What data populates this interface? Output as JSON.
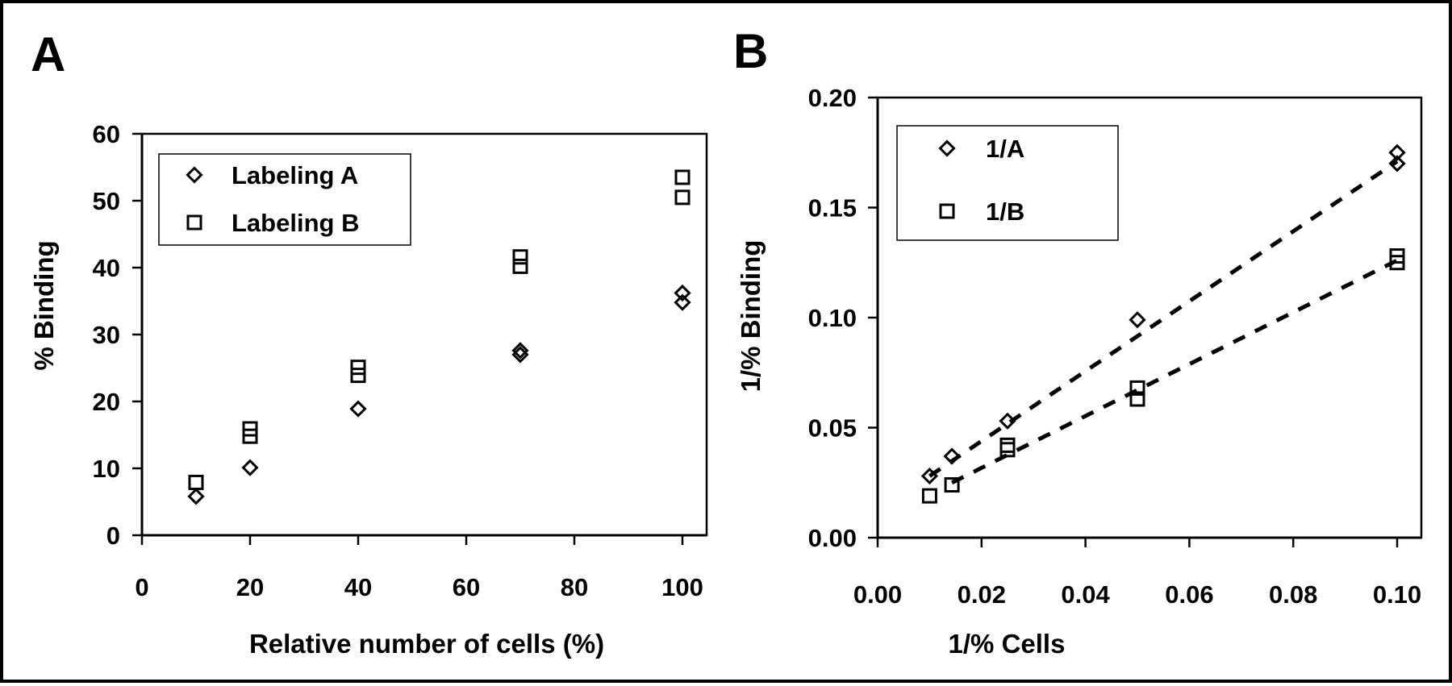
{
  "panels": [
    {
      "letter": "A",
      "chart_data": {
        "type": "scatter",
        "title": "",
        "xlabel": "Relative number of cells (%)",
        "ylabel": "% Binding",
        "xlim": [
          0,
          100
        ],
        "ylim": [
          0,
          60
        ],
        "xticks": [
          0,
          20,
          40,
          60,
          80,
          100
        ],
        "yticks": [
          0,
          10,
          20,
          30,
          40,
          50,
          60
        ],
        "xtick_labels": [
          "0",
          "20",
          "40",
          "60",
          "80",
          "100"
        ],
        "ytick_labels": [
          "0",
          "10",
          "20",
          "30",
          "40",
          "50",
          "60"
        ],
        "grid": false,
        "legend_position": "top-left",
        "series": [
          {
            "name": "Labeling A",
            "marker": "diamond",
            "points": [
              [
                10,
                5.8
              ],
              [
                20,
                10.1
              ],
              [
                40,
                18.9
              ],
              [
                70,
                27.0
              ],
              [
                70,
                27.6
              ],
              [
                100,
                34.8
              ],
              [
                100,
                36.2
              ]
            ]
          },
          {
            "name": "Labeling B",
            "marker": "square",
            "points": [
              [
                10,
                7.9
              ],
              [
                20,
                14.8
              ],
              [
                20,
                15.9
              ],
              [
                40,
                23.9
              ],
              [
                40,
                25.1
              ],
              [
                70,
                40.2
              ],
              [
                70,
                41.6
              ],
              [
                100,
                50.5
              ],
              [
                100,
                53.5
              ]
            ]
          }
        ]
      }
    },
    {
      "letter": "B",
      "chart_data": {
        "type": "scatter",
        "title": "",
        "xlabel": "1/% Cells",
        "ylabel": "1/% Binding",
        "xlim": [
          0,
          0.1
        ],
        "ylim": [
          0,
          0.2
        ],
        "xticks": [
          0,
          0.02,
          0.04,
          0.06,
          0.08,
          0.1
        ],
        "yticks": [
          0,
          0.05,
          0.1,
          0.15,
          0.2
        ],
        "xtick_labels": [
          "0.00",
          "0.02",
          "0.04",
          "0.06",
          "0.08",
          "0.10"
        ],
        "ytick_labels": [
          "0.00",
          "0.05",
          "0.10",
          "0.15",
          "0.20"
        ],
        "grid": false,
        "legend_position": "top-left",
        "series": [
          {
            "name": "1/A",
            "marker": "diamond",
            "points": [
              [
                0.01,
                0.028
              ],
              [
                0.0143,
                0.037
              ],
              [
                0.025,
                0.053
              ],
              [
                0.05,
                0.099
              ],
              [
                0.1,
                0.17
              ],
              [
                0.1,
                0.175
              ]
            ],
            "fit": {
              "style": "dashed",
              "x": [
                0.01,
                0.1
              ],
              "y": [
                0.028,
                0.171
              ]
            }
          },
          {
            "name": "1/B",
            "marker": "square",
            "points": [
              [
                0.01,
                0.019
              ],
              [
                0.0143,
                0.024
              ],
              [
                0.025,
                0.04
              ],
              [
                0.025,
                0.042
              ],
              [
                0.05,
                0.063
              ],
              [
                0.05,
                0.068
              ],
              [
                0.1,
                0.125
              ],
              [
                0.1,
                0.128
              ]
            ],
            "fit": {
              "style": "dashed",
              "x": [
                0.0143,
                0.1
              ],
              "y": [
                0.025,
                0.126
              ]
            }
          }
        ]
      }
    }
  ]
}
